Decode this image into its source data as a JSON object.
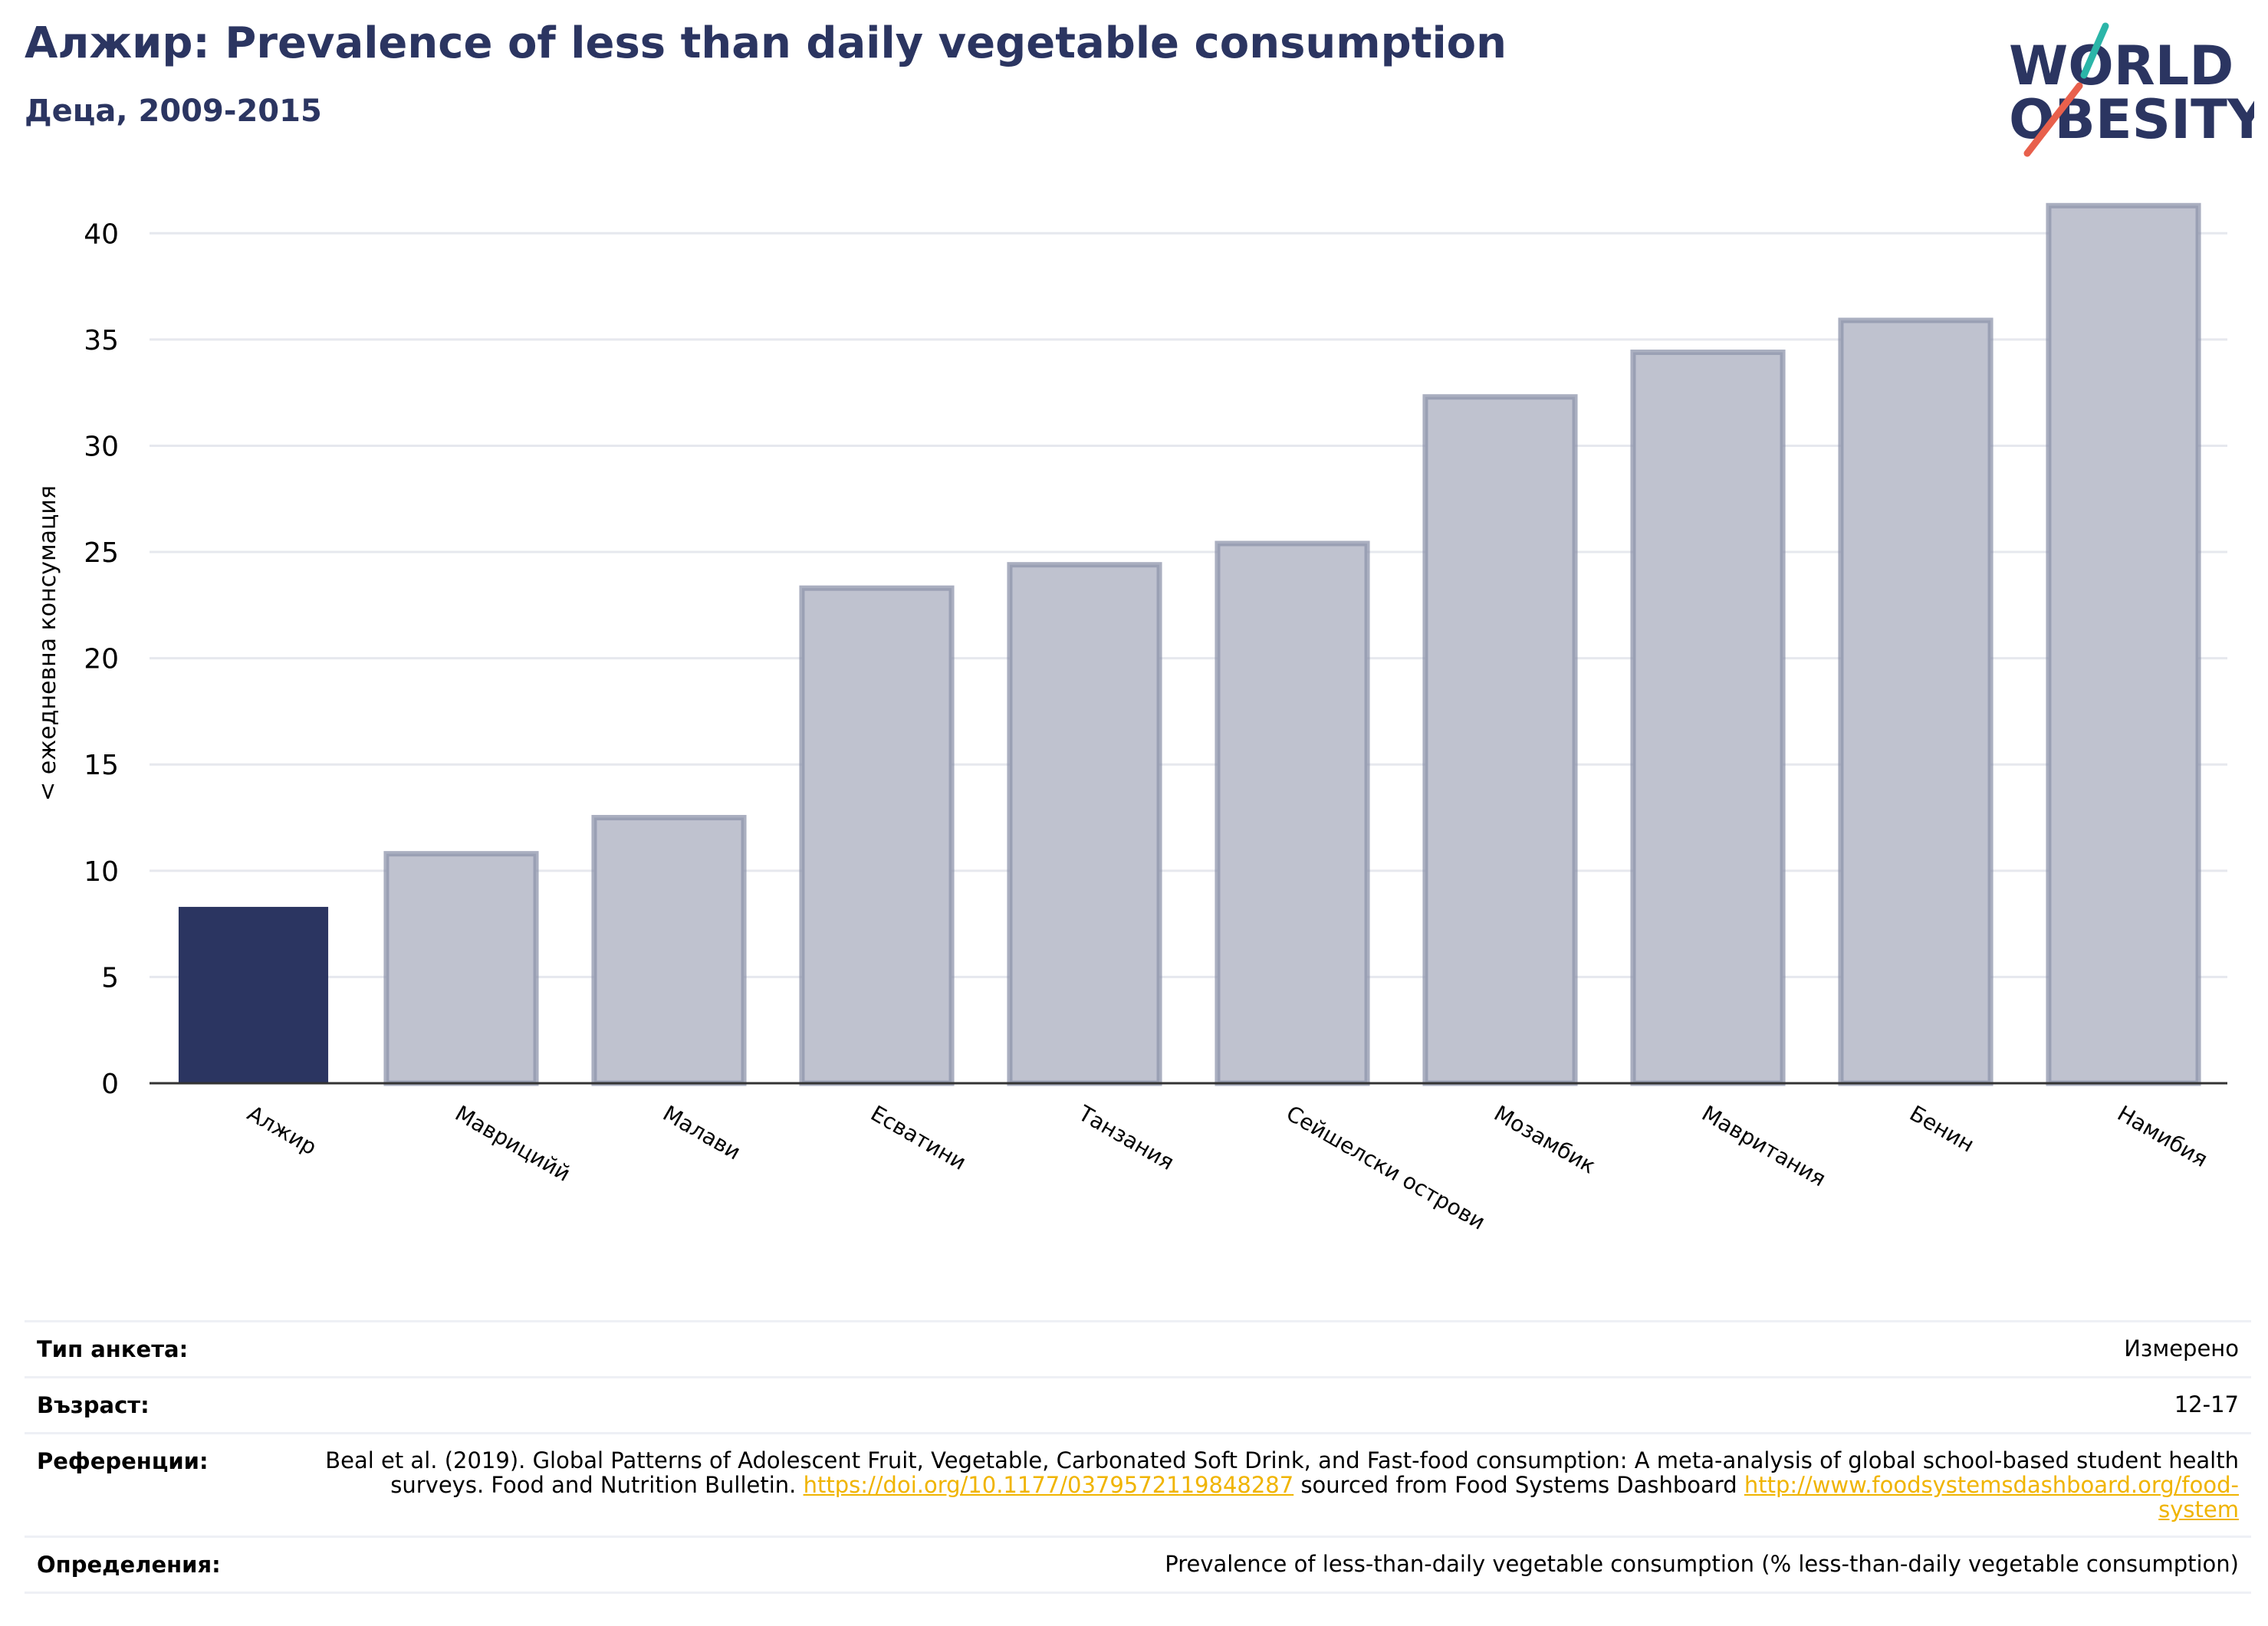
{
  "header": {
    "title": "Алжир: Prevalence of less than daily vegetable consumption",
    "subtitle": "Деца, 2009-2015"
  },
  "logo": {
    "line1": "WORLD",
    "line2": "OBESITY",
    "colors": {
      "text": "#2b3561",
      "slash_top": "#2bb5a8",
      "slash_bottom": "#e8604c"
    }
  },
  "chart_data": {
    "type": "bar",
    "categories": [
      "Алжир",
      "Маврицийй",
      "Малави",
      "Есватини",
      "Танзания",
      "Сейшелски острови",
      "Мозамбик",
      "Мавритания",
      "Бенин",
      "Намибия"
    ],
    "values": [
      8.3,
      10.8,
      12.5,
      23.3,
      24.4,
      25.4,
      32.3,
      34.4,
      35.9,
      41.3
    ],
    "highlight_index": 0,
    "ylabel": "< ежедневна консумация",
    "xlabel": "",
    "ylim": [
      0,
      42.5
    ],
    "yticks": [
      0,
      5,
      10,
      15,
      20,
      25,
      30,
      35,
      40
    ],
    "grid": true,
    "colors": {
      "highlight": "#2b3561",
      "other_fill": "#bfc2cf",
      "other_stroke": "#8e94ab",
      "grid": "#e6e8ee",
      "axis": "#333333"
    }
  },
  "meta": [
    {
      "label": "Тип анкета:",
      "value": "Измерено"
    },
    {
      "label": "Възраст:",
      "value": "12-17"
    },
    {
      "label": "Референции:",
      "text1": "Beal et al. (2019). Global Patterns of Adolescent Fruit, Vegetable, Carbonated Soft Drink, and Fast-food consumption: A meta-analysis of global school-based student health surveys. Food and Nutrition Bulletin.",
      "link1": "https://doi.org/10.1177/0379572119848287",
      "text2": "sourced from Food Systems Dashboard",
      "link2": "http://www.foodsystemsdashboard.org/food-system"
    },
    {
      "label": "Определения:",
      "value": "Prevalence of less-than-daily vegetable consumption (% less-than-daily vegetable consumption)"
    }
  ]
}
